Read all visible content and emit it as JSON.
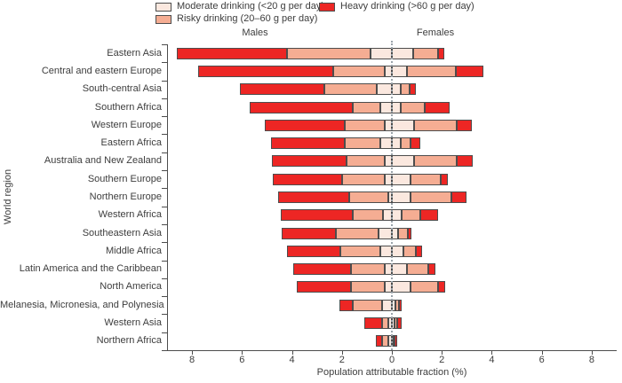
{
  "legend": {
    "items": [
      {
        "key": "moderate",
        "label": "Moderate drinking (<20 g per day)",
        "color": "#FBE8DF"
      },
      {
        "key": "risky",
        "label": "Risky drinking (20–60 g per day)",
        "color": "#F5AD93"
      },
      {
        "key": "heavy",
        "label": "Heavy drinking (>60 g per day)",
        "color": "#ED2624"
      }
    ]
  },
  "chart_data": {
    "type": "bar",
    "subtype": "diverging_stacked_horizontal",
    "title": "",
    "xlabel": "Population attributable fraction (%)",
    "ylabel": "World region",
    "group_labels": {
      "left": "Males",
      "right": "Females"
    },
    "x_tick_values": [
      -8,
      -6,
      -4,
      -2,
      0,
      2,
      4,
      6,
      8
    ],
    "x_tick_labels": [
      "8",
      "6",
      "4",
      "2",
      "0",
      "2",
      "4",
      "6",
      "8"
    ],
    "x_range": [
      -9,
      9
    ],
    "segment_order": [
      "moderate",
      "risky",
      "heavy"
    ],
    "colors": {
      "moderate": "#FBE8DF",
      "risky": "#F5AD93",
      "heavy": "#ED2624",
      "outline": "#4d4d4d",
      "zero_line": "#9ba4ab"
    },
    "legend_position": "top",
    "grid": false,
    "regions": [
      {
        "name": "Eastern Asia",
        "males": {
          "moderate": 0.85,
          "risky": 3.35,
          "heavy": 4.4
        },
        "females": {
          "moderate": 0.85,
          "risky": 1.0,
          "heavy": 0.25
        }
      },
      {
        "name": "Central and eastern Europe",
        "males": {
          "moderate": 0.3,
          "risky": 2.05,
          "heavy": 5.4
        },
        "females": {
          "moderate": 0.6,
          "risky": 1.95,
          "heavy": 1.1
        }
      },
      {
        "name": "South-central Asia",
        "males": {
          "moderate": 0.6,
          "risky": 2.1,
          "heavy": 3.4
        },
        "females": {
          "moderate": 0.35,
          "risky": 0.35,
          "heavy": 0.25
        }
      },
      {
        "name": "Southern Africa",
        "males": {
          "moderate": 0.45,
          "risky": 1.1,
          "heavy": 4.15
        },
        "females": {
          "moderate": 0.35,
          "risky": 0.95,
          "heavy": 1.0
        }
      },
      {
        "name": "Western Europe",
        "males": {
          "moderate": 0.3,
          "risky": 1.6,
          "heavy": 3.2
        },
        "females": {
          "moderate": 0.9,
          "risky": 1.7,
          "heavy": 0.6
        }
      },
      {
        "name": "Eastern Africa",
        "males": {
          "moderate": 0.45,
          "risky": 1.45,
          "heavy": 2.95
        },
        "females": {
          "moderate": 0.35,
          "risky": 0.4,
          "heavy": 0.4
        }
      },
      {
        "name": "Australia and New Zealand",
        "males": {
          "moderate": 0.3,
          "risky": 1.5,
          "heavy": 3.0
        },
        "females": {
          "moderate": 0.9,
          "risky": 1.7,
          "heavy": 0.65
        }
      },
      {
        "name": "Southern Europe",
        "males": {
          "moderate": 0.3,
          "risky": 1.7,
          "heavy": 2.75
        },
        "females": {
          "moderate": 0.75,
          "risky": 1.2,
          "heavy": 0.3
        }
      },
      {
        "name": "Northern Europe",
        "males": {
          "moderate": 0.15,
          "risky": 1.55,
          "heavy": 2.85
        },
        "females": {
          "moderate": 0.75,
          "risky": 1.65,
          "heavy": 0.6
        }
      },
      {
        "name": "Western Africa",
        "males": {
          "moderate": 0.35,
          "risky": 1.2,
          "heavy": 2.9
        },
        "females": {
          "moderate": 0.4,
          "risky": 0.75,
          "heavy": 0.7
        }
      },
      {
        "name": "Southeastern Asia",
        "males": {
          "moderate": 0.55,
          "risky": 1.7,
          "heavy": 2.15
        },
        "females": {
          "moderate": 0.25,
          "risky": 0.4,
          "heavy": 0.15
        }
      },
      {
        "name": "Middle Africa",
        "males": {
          "moderate": 0.45,
          "risky": 1.6,
          "heavy": 2.15
        },
        "females": {
          "moderate": 0.45,
          "risky": 0.5,
          "heavy": 0.25
        }
      },
      {
        "name": "Latin America and the Caribbean",
        "males": {
          "moderate": 0.3,
          "risky": 1.35,
          "heavy": 2.3
        },
        "females": {
          "moderate": 0.6,
          "risky": 0.85,
          "heavy": 0.3
        }
      },
      {
        "name": "North America",
        "males": {
          "moderate": 0.27,
          "risky": 1.35,
          "heavy": 2.2
        },
        "females": {
          "moderate": 0.75,
          "risky": 1.1,
          "heavy": 0.3
        }
      },
      {
        "name": "Melanesia, Micronesia, and Polynesia",
        "males": {
          "moderate": 0.4,
          "risky": 1.15,
          "heavy": 0.55
        },
        "females": {
          "moderate": 0.15,
          "risky": 0.13,
          "heavy": 0.12
        }
      },
      {
        "name": "Western Asia",
        "males": {
          "moderate": 0.15,
          "risky": 0.25,
          "heavy": 0.7
        },
        "females": {
          "moderate": 0.12,
          "risky": 0.08,
          "heavy": 0.18
        }
      },
      {
        "name": "Northern Africa",
        "males": {
          "moderate": 0.15,
          "risky": 0.25,
          "heavy": 0.25
        },
        "females": {
          "moderate": 0.07,
          "risky": 0.05,
          "heavy": 0.08
        }
      }
    ]
  }
}
